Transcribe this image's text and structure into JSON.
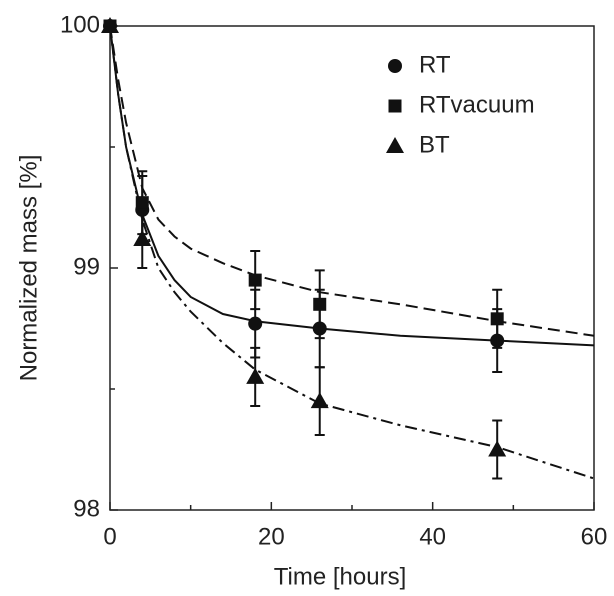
{
  "chart_data": {
    "type": "scatter",
    "xlabel": "Time [hours]",
    "ylabel": "Normalized mass [%]",
    "xlim": [
      0,
      60
    ],
    "ylim": [
      98,
      100
    ],
    "xticks": [
      0,
      20,
      40,
      60
    ],
    "yticks": [
      98,
      99,
      100
    ],
    "xminor_ticks": [
      10,
      30,
      50
    ],
    "yminor_ticks": [
      98.5,
      99.5
    ],
    "legend": "upper right",
    "series": [
      {
        "name": "RT",
        "marker": "circle",
        "color": "#111111",
        "x": [
          0,
          4,
          18,
          26,
          48
        ],
        "values": [
          100,
          99.24,
          98.77,
          98.75,
          98.7
        ],
        "errors": [
          0,
          0.14,
          0.14,
          0.16,
          0.13
        ]
      },
      {
        "name": "RTvacuum",
        "marker": "square",
        "color": "#111111",
        "x": [
          0,
          4,
          18,
          26,
          48
        ],
        "values": [
          100,
          99.27,
          98.95,
          98.85,
          98.79
        ],
        "errors": [
          0,
          0.13,
          0.12,
          0.14,
          0.12
        ]
      },
      {
        "name": "BT",
        "marker": "triangle",
        "color": "#111111",
        "x": [
          0,
          4,
          18,
          26,
          48
        ],
        "values": [
          100,
          99.12,
          98.55,
          98.45,
          98.25
        ],
        "errors": [
          0,
          0.12,
          0.12,
          0.14,
          0.12
        ]
      }
    ],
    "fits": [
      {
        "style": "solid",
        "color": "#111111",
        "x": [
          0,
          1,
          2,
          4,
          6,
          8,
          10,
          14,
          18,
          26,
          36,
          48,
          60
        ],
        "values": [
          100,
          99.72,
          99.5,
          99.22,
          99.05,
          98.95,
          98.88,
          98.81,
          98.78,
          98.75,
          98.72,
          98.7,
          98.68
        ]
      },
      {
        "style": "dashed",
        "color": "#111111",
        "x": [
          0,
          1,
          2,
          4,
          6,
          8,
          10,
          14,
          18,
          26,
          36,
          48,
          60
        ],
        "values": [
          100,
          99.78,
          99.6,
          99.33,
          99.2,
          99.13,
          99.08,
          99.02,
          98.97,
          98.9,
          98.85,
          98.78,
          98.72
        ]
      },
      {
        "style": "dashdot",
        "color": "#111111",
        "x": [
          0,
          1,
          2,
          4,
          6,
          8,
          10,
          14,
          18,
          26,
          36,
          48,
          60
        ],
        "values": [
          100,
          99.72,
          99.5,
          99.2,
          99.0,
          98.9,
          98.82,
          98.69,
          98.58,
          98.44,
          98.35,
          98.26,
          98.13
        ]
      }
    ]
  }
}
